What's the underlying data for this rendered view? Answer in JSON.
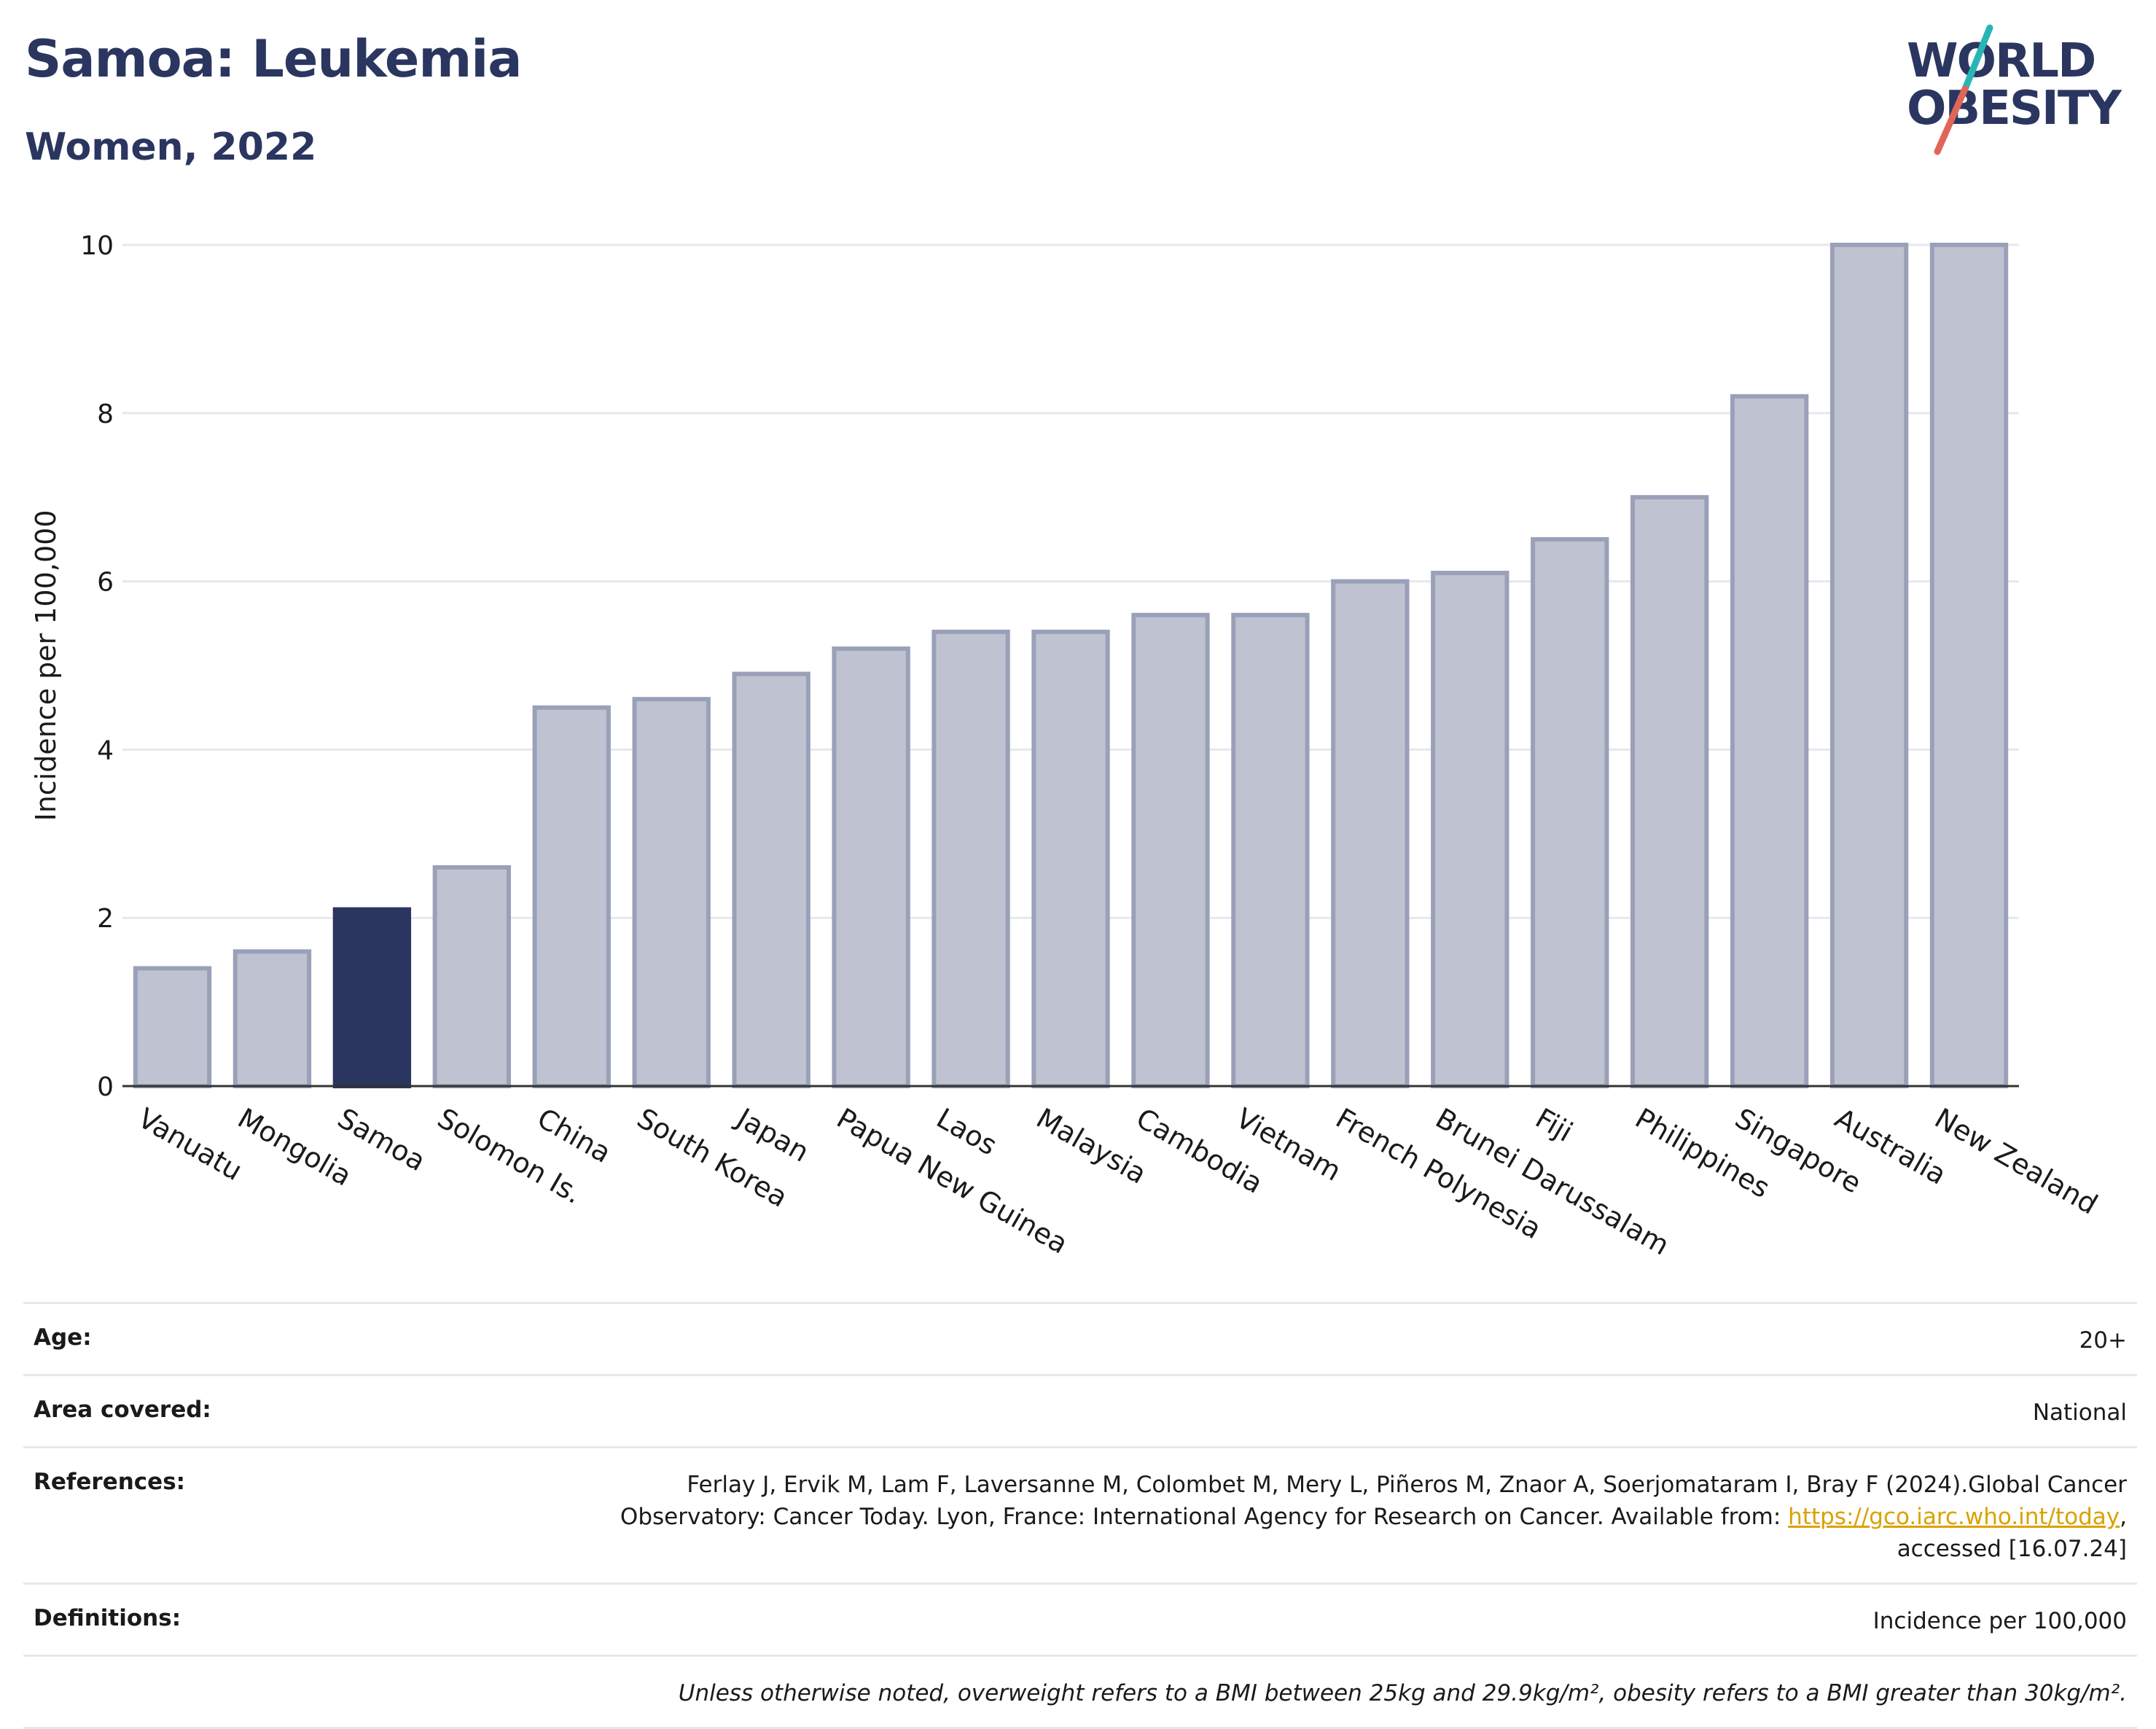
{
  "header": {
    "title": "Samoa: Leukemia",
    "subtitle": "Women, 2022"
  },
  "logo": {
    "line1": "WORLD",
    "line2": "OBESITY",
    "colors": {
      "text": "#2b3660",
      "slash_top": "#2ab5b5",
      "slash_bottom": "#e0665a"
    }
  },
  "chart_data": {
    "type": "bar",
    "ylabel": "Incidence per 100,000",
    "xlabel": "",
    "ylim": [
      0,
      10
    ],
    "yticks": [
      0,
      2,
      4,
      6,
      8,
      10
    ],
    "grid": true,
    "highlight": "Samoa",
    "colors": {
      "default": "#bfc3d1",
      "default_stroke": "#9aa0b8",
      "highlight": "#2b3660"
    },
    "categories": [
      "Vanuatu",
      "Mongolia",
      "Samoa",
      "Solomon Is.",
      "China",
      "South Korea",
      "Japan",
      "Papua New Guinea",
      "Laos",
      "Malaysia",
      "Cambodia",
      "Vietnam",
      "French Polynesia",
      "Brunei Darussalam",
      "Fiji",
      "Philippines",
      "Singapore",
      "Australia",
      "New Zealand"
    ],
    "values": [
      1.4,
      1.6,
      2.1,
      2.6,
      4.5,
      4.6,
      4.9,
      5.2,
      5.4,
      5.4,
      5.6,
      5.6,
      6.0,
      6.1,
      6.5,
      7.0,
      8.2,
      10.0,
      10.0
    ]
  },
  "info": {
    "age_label": "Age:",
    "age_value": "20+",
    "area_label": "Area covered:",
    "area_value": "National",
    "references_label": "References:",
    "references_text_1": "Ferlay J, Ervik M, Lam F, Laversanne M, Colombet M, Mery L, Piñeros M, Znaor A, Soerjomataram I, Bray F (2024).Global Cancer Observatory: Cancer Today. Lyon, France: International Agency for Research on Cancer. Available from: ",
    "references_link": "https://gco.iarc.who.int/today",
    "references_text_2": ", accessed [16.07.24]",
    "definitions_label": "Definitions:",
    "definitions_value": "Incidence per 100,000",
    "note": "Unless otherwise noted, overweight refers to a BMI between 25kg and 29.9kg/m², obesity refers to a BMI greater than 30kg/m²."
  }
}
